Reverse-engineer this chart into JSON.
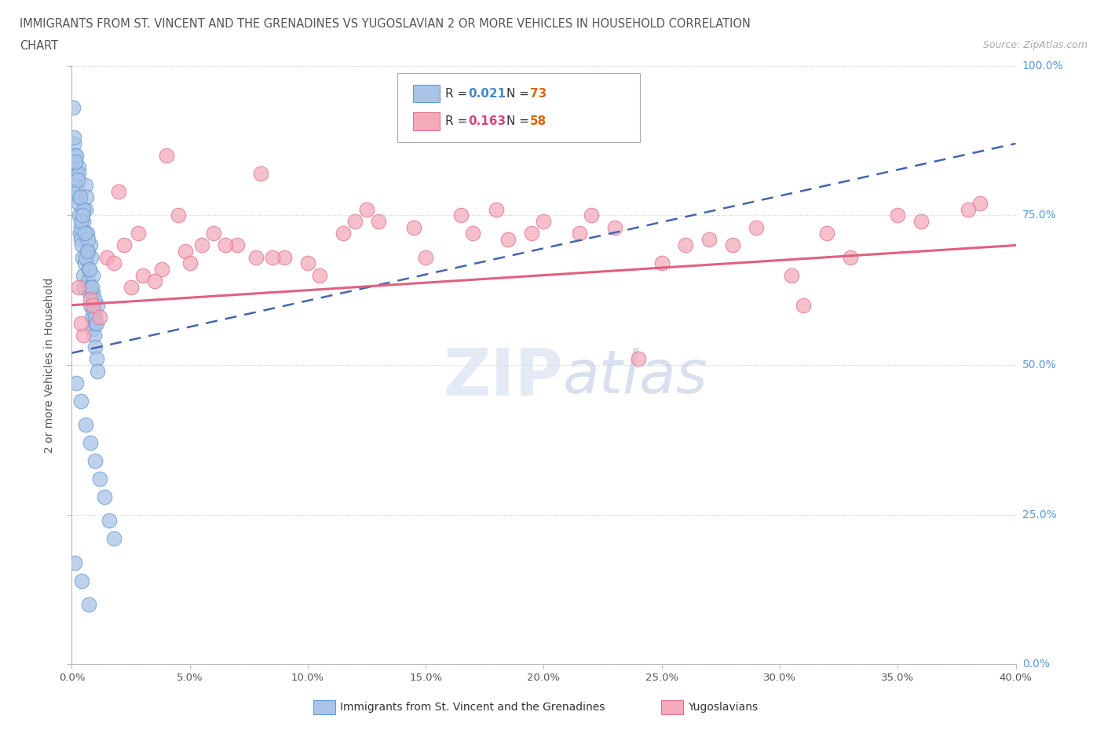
{
  "title_line1": "IMMIGRANTS FROM ST. VINCENT AND THE GRENADINES VS YUGOSLAVIAN 2 OR MORE VEHICLES IN HOUSEHOLD CORRELATION",
  "title_line2": "CHART",
  "source": "Source: ZipAtlas.com",
  "ylabel_label": "2 or more Vehicles in Household",
  "legend_blue_r": "R = 0.021",
  "legend_blue_n": "N = 73",
  "legend_pink_r": "R = 0.163",
  "legend_pink_n": "N = 58",
  "blue_color": "#aac4e8",
  "pink_color": "#f4aabb",
  "blue_edge_color": "#6699cc",
  "pink_edge_color": "#e07090",
  "blue_line_color": "#4466aa",
  "pink_line_color": "#e06080",
  "legend_blue_text_r_color": "#4488cc",
  "legend_blue_text_n_color": "#dd6600",
  "legend_pink_text_r_color": "#dd4477",
  "legend_pink_text_n_color": "#dd6600",
  "watermark_zip": "ZIP",
  "watermark_atlas": "atlas",
  "xmin": 0.0,
  "xmax": 40.0,
  "ymin": 0.0,
  "ymax": 100.0,
  "blue_trend_x0": 0.0,
  "blue_trend_x1": 40.0,
  "blue_trend_y0": 52.0,
  "blue_trend_y1": 87.0,
  "pink_trend_x0": 0.0,
  "pink_trend_x1": 40.0,
  "pink_trend_y0": 60.0,
  "pink_trend_y1": 70.0,
  "blue_scatter_x": [
    0.05,
    0.08,
    0.12,
    0.15,
    0.18,
    0.2,
    0.22,
    0.25,
    0.28,
    0.3,
    0.32,
    0.35,
    0.38,
    0.4,
    0.42,
    0.45,
    0.48,
    0.5,
    0.52,
    0.55,
    0.58,
    0.6,
    0.62,
    0.65,
    0.68,
    0.7,
    0.72,
    0.75,
    0.78,
    0.8,
    0.82,
    0.85,
    0.88,
    0.9,
    0.92,
    0.95,
    0.98,
    1.0,
    1.05,
    1.1,
    0.1,
    0.3,
    0.5,
    0.7,
    0.9,
    1.1,
    0.2,
    0.4,
    0.6,
    0.8,
    1.0,
    0.15,
    0.35,
    0.55,
    0.75,
    0.95,
    0.25,
    0.45,
    0.65,
    0.85,
    1.05,
    0.18,
    0.38,
    0.58,
    0.78,
    0.98,
    1.2,
    1.4,
    1.6,
    1.8,
    0.12,
    0.42,
    0.72
  ],
  "blue_scatter_y": [
    93,
    87,
    85,
    84,
    82,
    80,
    78,
    79,
    77,
    83,
    75,
    72,
    71,
    73,
    70,
    68,
    74,
    65,
    63,
    67,
    76,
    80,
    78,
    72,
    69,
    64,
    66,
    62,
    60,
    70,
    68,
    58,
    56,
    62,
    59,
    55,
    53,
    57,
    51,
    49,
    88,
    82,
    76,
    71,
    65,
    60,
    85,
    74,
    68,
    63,
    58,
    84,
    78,
    72,
    66,
    61,
    81,
    75,
    69,
    63,
    57,
    47,
    44,
    40,
    37,
    34,
    31,
    28,
    24,
    21,
    17,
    14,
    10
  ],
  "pink_scatter_x": [
    0.3,
    1.5,
    2.8,
    4.5,
    7.0,
    10.5,
    15.0,
    19.5,
    25.0,
    30.5,
    0.8,
    2.2,
    3.8,
    6.0,
    9.0,
    13.0,
    18.0,
    23.0,
    28.0,
    35.0,
    1.2,
    3.0,
    5.5,
    8.5,
    12.0,
    17.0,
    22.0,
    27.0,
    33.0,
    38.5,
    0.5,
    1.8,
    3.5,
    6.5,
    10.0,
    14.5,
    20.0,
    26.0,
    32.0,
    38.0,
    0.9,
    2.5,
    4.8,
    7.8,
    11.5,
    16.5,
    21.5,
    29.0,
    36.0,
    4.0,
    8.0,
    12.5,
    18.5,
    24.0,
    31.0,
    0.4,
    2.0,
    5.0
  ],
  "pink_scatter_y": [
    63,
    68,
    72,
    75,
    70,
    65,
    68,
    72,
    67,
    65,
    61,
    70,
    66,
    72,
    68,
    74,
    76,
    73,
    70,
    75,
    58,
    65,
    70,
    68,
    74,
    72,
    75,
    71,
    68,
    77,
    55,
    67,
    64,
    70,
    67,
    73,
    74,
    70,
    72,
    76,
    60,
    63,
    69,
    68,
    72,
    75,
    72,
    73,
    74,
    85,
    82,
    76,
    71,
    51,
    60,
    57,
    79,
    67
  ],
  "grid_color": "#ddddee",
  "grid_style": "dotted"
}
